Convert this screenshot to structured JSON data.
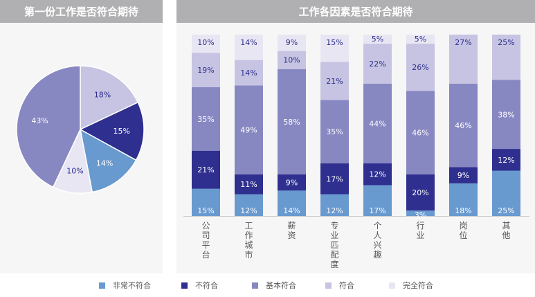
{
  "left_title": "第一份工作是否符合期待",
  "right_title": "工作各因素是否符合期待",
  "colors": {
    "非常不符合": "#6899cf",
    "不符合": "#2e2f8e",
    "基本符合": "#8787c2",
    "符合": "#c6c4e2",
    "完全符合": "#e8e6f3"
  },
  "chart_data": [
    {
      "type": "pie",
      "title": "第一份工作是否符合期待",
      "slices": [
        {
          "label": "符合",
          "value": 18
        },
        {
          "label": "不符合",
          "value": 15
        },
        {
          "label": "非常不符合",
          "value": 14
        },
        {
          "label": "完全符合",
          "value": 10
        },
        {
          "label": "基本符合",
          "value": 43
        }
      ],
      "start": "top",
      "direction": "clockwise"
    },
    {
      "type": "bar",
      "stacked": true,
      "title": "工作各因素是否符合期待",
      "categories": [
        "公司平台",
        "工作城市",
        "薪资",
        "专业匹配度",
        "个人兴趣",
        "行业",
        "岗位",
        "其他"
      ],
      "series": [
        {
          "name": "非常不符合",
          "values": [
            15,
            12,
            14,
            12,
            17,
            3,
            18,
            25
          ]
        },
        {
          "name": "不符合",
          "values": [
            21,
            11,
            9,
            17,
            12,
            20,
            9,
            12
          ]
        },
        {
          "name": "基本符合",
          "values": [
            35,
            49,
            58,
            35,
            44,
            46,
            46,
            38
          ]
        },
        {
          "name": "符合",
          "values": [
            19,
            14,
            10,
            21,
            22,
            26,
            27,
            25
          ]
        },
        {
          "name": "完全符合",
          "values": [
            10,
            14,
            9,
            15,
            5,
            5,
            0,
            0
          ]
        }
      ],
      "value_format": "percent",
      "legend": "bottom"
    }
  ],
  "legend": [
    "非常不符合",
    "不符合",
    "基本符合",
    "符合",
    "完全符合"
  ]
}
